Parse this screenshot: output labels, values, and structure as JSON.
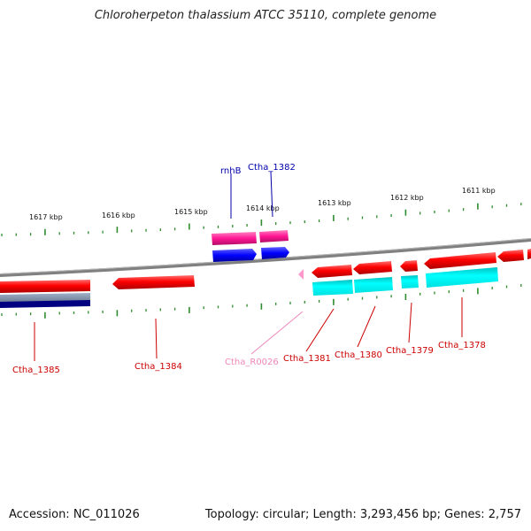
{
  "title": "Chloroherpeton thalassium ATCC 35110, complete genome",
  "footer": {
    "accession": "Accession: NC_011026",
    "topology": "Topology: circular; Length: 3,293,456 bp; Genes: 2,757"
  },
  "scale_labels": [
    "1617 kbp",
    "1616 kbp",
    "1615 kbp",
    "1614 kbp",
    "1613 kbp",
    "1612 kbp",
    "1611 kbp"
  ],
  "gene_labels": [
    {
      "name": "rnhB",
      "color": "#0000aa"
    },
    {
      "name": "Ctha_1382",
      "color": "#0000aa"
    },
    {
      "name": "Ctha_1385",
      "color": "#cc0000"
    },
    {
      "name": "Ctha_1384",
      "color": "#cc0000"
    },
    {
      "name": "Ctha_R0026",
      "color": "#ee88bb"
    },
    {
      "name": "Ctha_1381",
      "color": "#cc0000"
    },
    {
      "name": "Ctha_1380",
      "color": "#cc0000"
    },
    {
      "name": "Ctha_1379",
      "color": "#cc0000"
    },
    {
      "name": "Ctha_1378",
      "color": "#cc0000"
    }
  ],
  "colors": {
    "cds_forward_top": "#ff1493",
    "cds_forward_blue": "#0000ff",
    "cds_reverse": "#ff0000",
    "cds_reverse_cyan": "#00ffff",
    "rna": "#ff99cc",
    "backbone": "#808080",
    "ticks": "#2e8b2e",
    "navy": "#000080"
  }
}
